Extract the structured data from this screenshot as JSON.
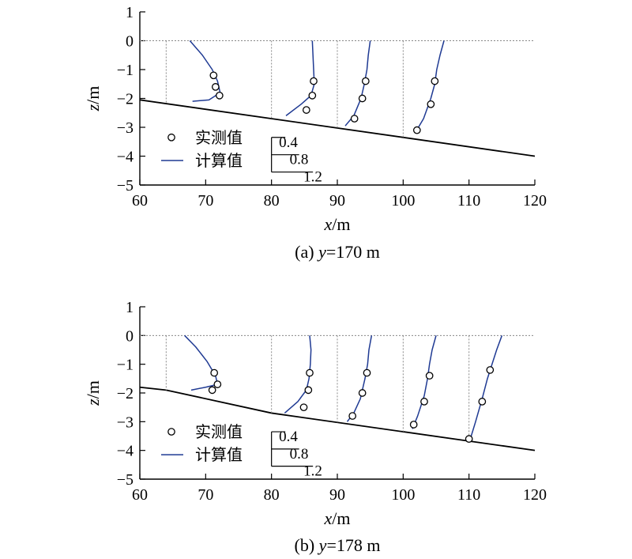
{
  "chart_data": [
    {
      "type": "line",
      "caption_prefix": "(a) ",
      "caption_var": "y",
      "caption_value": "=170 m",
      "xlabel_var": "x",
      "xlabel_unit": "/m",
      "ylabel_var": "z",
      "ylabel_unit": "/m",
      "xlim": [
        60,
        120
      ],
      "ylim": [
        -5,
        1
      ],
      "x_ticks": [
        60,
        70,
        80,
        90,
        100,
        110,
        120
      ],
      "y_ticks": [
        1,
        0,
        -1,
        -2,
        -3,
        -4,
        -5
      ],
      "x_tick_labels": [
        "60",
        "70",
        "80",
        "90",
        "100",
        "110",
        "120"
      ],
      "y_tick_labels": [
        "1",
        "0",
        "−1",
        "−2",
        "−3",
        "−4",
        "−5"
      ],
      "zero_line": "dashed",
      "ground": [
        [
          60,
          -2.05
        ],
        [
          120,
          -4.0
        ]
      ],
      "stations": [
        {
          "x0": 64,
          "computed": [
            [
              67.6,
              0
            ],
            [
              69.5,
              -0.5
            ],
            [
              71.0,
              -1.0
            ],
            [
              71.8,
              -1.4
            ],
            [
              72.2,
              -1.8
            ],
            [
              70.5,
              -2.05
            ],
            [
              68.0,
              -2.1
            ]
          ],
          "measured": [
            [
              71.2,
              -1.2
            ],
            [
              71.5,
              -1.6
            ],
            [
              72.1,
              -1.9
            ]
          ]
        },
        {
          "x0": 80,
          "computed": [
            [
              86.2,
              0
            ],
            [
              86.3,
              -0.5
            ],
            [
              86.4,
              -1.0
            ],
            [
              86.5,
              -1.5
            ],
            [
              86.0,
              -1.9
            ],
            [
              84.5,
              -2.2
            ],
            [
              82.2,
              -2.6
            ]
          ],
          "measured": [
            [
              86.4,
              -1.4
            ],
            [
              86.2,
              -1.9
            ],
            [
              85.3,
              -2.4
            ]
          ]
        },
        {
          "x0": 90,
          "computed": [
            [
              95.0,
              0
            ],
            [
              94.7,
              -0.5
            ],
            [
              94.5,
              -1.0
            ],
            [
              94.1,
              -1.5
            ],
            [
              93.6,
              -2.0
            ],
            [
              92.5,
              -2.6
            ],
            [
              91.2,
              -2.95
            ]
          ],
          "measured": [
            [
              94.3,
              -1.4
            ],
            [
              93.8,
              -2.0
            ],
            [
              92.6,
              -2.7
            ]
          ]
        },
        {
          "x0": 100,
          "computed": [
            [
              106.2,
              0
            ],
            [
              105.6,
              -0.5
            ],
            [
              105.1,
              -1.0
            ],
            [
              104.8,
              -1.5
            ],
            [
              104.2,
              -2.0
            ],
            [
              103.1,
              -2.7
            ],
            [
              101.8,
              -3.2
            ]
          ],
          "measured": [
            [
              104.8,
              -1.4
            ],
            [
              104.2,
              -2.2
            ],
            [
              102.1,
              -3.1
            ]
          ]
        }
      ],
      "legend": {
        "measured_label": "实测值",
        "computed_label": "计算值",
        "scale_labels": [
          "0.4",
          "0.8",
          "1.2"
        ]
      }
    },
    {
      "type": "line",
      "caption_prefix": "(b) ",
      "caption_var": "y",
      "caption_value": "=178 m",
      "xlabel_var": "x",
      "xlabel_unit": "/m",
      "ylabel_var": "z",
      "ylabel_unit": "/m",
      "xlim": [
        60,
        120
      ],
      "ylim": [
        -5,
        1
      ],
      "x_ticks": [
        60,
        70,
        80,
        90,
        100,
        110,
        120
      ],
      "y_ticks": [
        1,
        0,
        -1,
        -2,
        -3,
        -4,
        -5
      ],
      "x_tick_labels": [
        "60",
        "70",
        "80",
        "90",
        "100",
        "110",
        "120"
      ],
      "y_tick_labels": [
        "1",
        "0",
        "−1",
        "−2",
        "−3",
        "−4",
        "−5"
      ],
      "zero_line": "dashed",
      "ground": [
        [
          60,
          -1.8
        ],
        [
          64,
          -1.9
        ],
        [
          80,
          -2.7
        ],
        [
          120,
          -4.0
        ]
      ],
      "stations": [
        {
          "x0": 64,
          "computed": [
            [
              66.8,
              0
            ],
            [
              68.5,
              -0.4
            ],
            [
              70.2,
              -0.9
            ],
            [
              71.5,
              -1.4
            ],
            [
              71.8,
              -1.7
            ],
            [
              70.0,
              -1.8
            ],
            [
              67.8,
              -1.9
            ]
          ],
          "measured": [
            [
              71.3,
              -1.3
            ],
            [
              71.8,
              -1.7
            ],
            [
              71.0,
              -1.9
            ]
          ]
        },
        {
          "x0": 80,
          "computed": [
            [
              85.8,
              0
            ],
            [
              86.0,
              -0.5
            ],
            [
              85.9,
              -1.0
            ],
            [
              85.7,
              -1.5
            ],
            [
              85.3,
              -1.9
            ],
            [
              84.0,
              -2.3
            ],
            [
              82.0,
              -2.7
            ]
          ],
          "measured": [
            [
              85.8,
              -1.3
            ],
            [
              85.6,
              -1.9
            ],
            [
              84.9,
              -2.5
            ]
          ]
        },
        {
          "x0": 90,
          "computed": [
            [
              95.2,
              0
            ],
            [
              94.8,
              -0.5
            ],
            [
              94.6,
              -1.0
            ],
            [
              94.2,
              -1.5
            ],
            [
              93.5,
              -2.2
            ],
            [
              92.5,
              -2.7
            ],
            [
              91.5,
              -3.0
            ]
          ],
          "measured": [
            [
              94.5,
              -1.3
            ],
            [
              93.8,
              -2.0
            ],
            [
              92.3,
              -2.8
            ]
          ]
        },
        {
          "x0": 100,
          "computed": [
            [
              105.0,
              0
            ],
            [
              104.4,
              -0.5
            ],
            [
              104.0,
              -1.0
            ],
            [
              103.7,
              -1.5
            ],
            [
              103.2,
              -2.1
            ],
            [
              102.2,
              -2.8
            ],
            [
              101.4,
              -3.25
            ]
          ],
          "measured": [
            [
              104.0,
              -1.4
            ],
            [
              103.2,
              -2.3
            ],
            [
              101.6,
              -3.1
            ]
          ]
        },
        {
          "x0": 110,
          "computed": [
            [
              115.0,
              0
            ],
            [
              114.2,
              -0.5
            ],
            [
              113.5,
              -1.0
            ],
            [
              112.8,
              -1.5
            ],
            [
              112.0,
              -2.2
            ],
            [
              111.0,
              -3.0
            ],
            [
              110.2,
              -3.6
            ]
          ],
          "measured": [
            [
              113.2,
              -1.2
            ],
            [
              112.0,
              -2.3
            ],
            [
              110.0,
              -3.6
            ]
          ]
        }
      ],
      "legend": {
        "measured_label": "实测值",
        "computed_label": "计算值",
        "scale_labels": [
          "0.4",
          "0.8",
          "1.2"
        ]
      }
    }
  ],
  "colors": {
    "computed_line": "#1f3a93",
    "measured_marker": "#000000",
    "ground_line": "#000000",
    "guide_line": "#888888"
  }
}
